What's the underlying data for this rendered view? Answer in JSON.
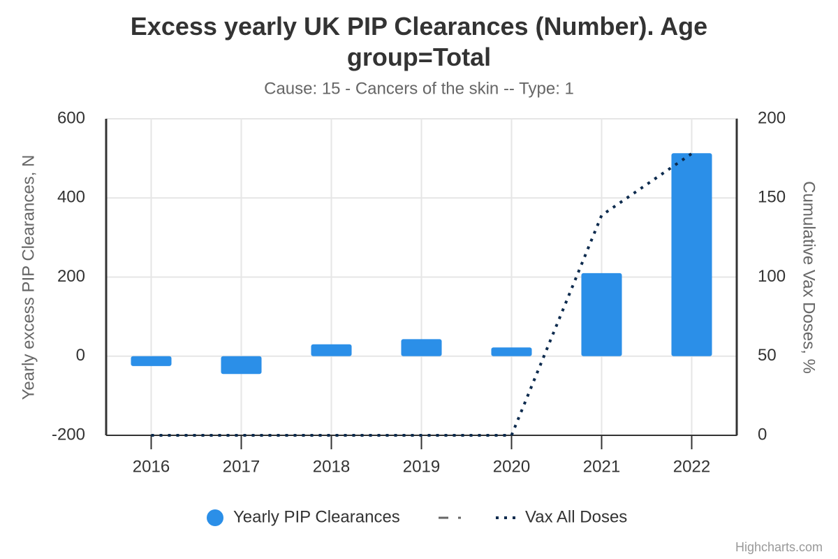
{
  "chart_data": {
    "type": "bar",
    "title": "Excess yearly UK PIP Clearances (Number). Age group=Total",
    "subtitle": "Cause: 15 - Cancers of the skin -- Type: 1",
    "y_label": "Yearly excess PIP Clearances, N",
    "y2_label": "Cumulative Vax Doses, %",
    "credit": "Highcharts.com",
    "categories": [
      "2016",
      "2017",
      "2018",
      "2019",
      "2020",
      "2021",
      "2022"
    ],
    "series": [
      {
        "name": "Yearly PIP Clearances",
        "type": "column",
        "color": "#2b8fe8",
        "values": [
          -25,
          -45,
          30,
          43,
          22,
          210,
          513
        ]
      },
      {
        "name": "Vax All Doses",
        "type": "line",
        "dash": "dot",
        "axis": "y2",
        "color": "#0d2b4e",
        "values": [
          0,
          0,
          0,
          0,
          0,
          139,
          178
        ]
      }
    ],
    "ylim": [
      -200,
      600
    ],
    "yticks": [
      -200,
      0,
      200,
      400,
      600
    ],
    "y2lim": [
      0,
      200
    ],
    "y2ticks": [
      0,
      50,
      100,
      150,
      200
    ],
    "grid": true
  }
}
